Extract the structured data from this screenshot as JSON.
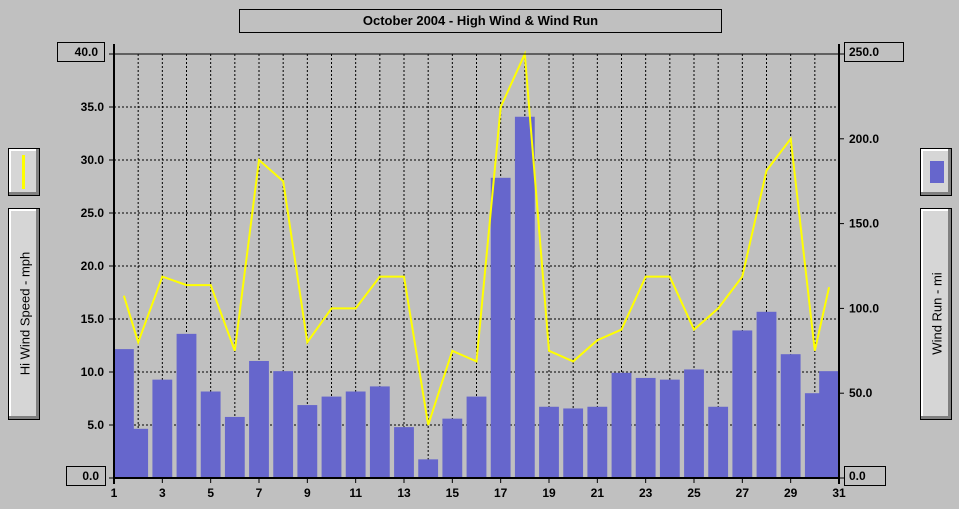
{
  "chart_data": {
    "type": "bar",
    "title": "October 2004 - High Wind & Wind Run",
    "x": [
      1,
      2,
      3,
      4,
      5,
      6,
      7,
      8,
      9,
      10,
      11,
      12,
      13,
      14,
      15,
      16,
      17,
      18,
      19,
      20,
      21,
      22,
      23,
      24,
      25,
      26,
      27,
      28,
      29,
      30,
      31
    ],
    "x_tick_labels": [
      "1",
      "3",
      "5",
      "7",
      "9",
      "11",
      "13",
      "15",
      "17",
      "19",
      "21",
      "23",
      "25",
      "27",
      "29",
      "31"
    ],
    "series": [
      {
        "axis": "right",
        "type": "bar",
        "color": "#6666cc",
        "values": [
          76,
          29,
          58,
          85,
          51,
          36,
          69,
          63,
          43,
          48,
          51,
          54,
          30,
          11,
          35,
          48,
          177,
          213,
          42,
          41,
          42,
          62,
          59,
          58,
          64,
          42,
          87,
          98,
          73,
          50,
          63
        ]
      },
      {
        "axis": "left",
        "type": "line",
        "color": "#ffff00",
        "values": [
          17.2,
          12.8,
          19.0,
          18.2,
          18.2,
          12.0,
          30.0,
          28.0,
          12.8,
          16.0,
          16.0,
          19.0,
          19.0,
          5.0,
          12.0,
          11.0,
          35.0,
          40.0,
          12.0,
          11.0,
          13.0,
          14.0,
          19.0,
          19.0,
          14.0,
          16.0,
          19.0,
          29.0,
          32.0,
          12.0,
          18.0
        ]
      }
    ],
    "y_left": {
      "label": "Hi Wind Speed - mph",
      "min": 0,
      "max": 40,
      "ticks": [
        "0.0",
        "5.0",
        "10.0",
        "15.0",
        "20.0",
        "25.0",
        "30.0",
        "35.0",
        "40.0"
      ]
    },
    "y_right": {
      "label": "Wind Run - mi",
      "min": 0,
      "max": 250,
      "ticks": [
        "0.0",
        "50.0",
        "100.0",
        "150.0",
        "200.0",
        "250.0"
      ]
    },
    "grid": true,
    "legend": [
      {
        "position": "left",
        "kind": "line",
        "color": "#ffff00"
      },
      {
        "position": "right",
        "kind": "bar",
        "color": "#6666cc"
      }
    ]
  }
}
